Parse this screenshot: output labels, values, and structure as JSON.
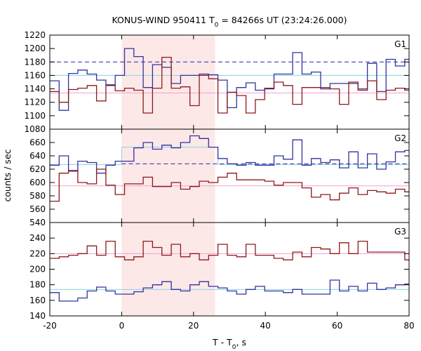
{
  "chart_data": {
    "type": "line",
    "title_main": "KONUS-WIND 950411 T",
    "title_sub": "0",
    "title_rest": " = 84266s UT (23:24:26.000)",
    "xlabel_main": "T - T",
    "xlabel_sub": "0",
    "xlabel_rest": ", s",
    "ylabel": "counts / sec",
    "xlim": [
      -20,
      80
    ],
    "x_ticks": [
      -20,
      0,
      20,
      40,
      60,
      80
    ],
    "x_tick_labels": [
      "-20",
      "0",
      "20",
      "40",
      "60",
      "80"
    ],
    "highlight_interval": [
      0,
      26
    ],
    "colors": {
      "highlight": "#fde8e8",
      "blue_series": "#3232a0",
      "red_series": "#8b1a1a",
      "blue_fit": "#87d3e6",
      "red_fit": "#f0a0d0",
      "blue_dashed": "#2828a0"
    },
    "panels": [
      {
        "label": "G1",
        "ylim": [
          1080,
          1220
        ],
        "y_ticks": [
          1080,
          1100,
          1120,
          1140,
          1160,
          1180,
          1200,
          1220
        ],
        "y_tick_labels": [
          "1080",
          "1100",
          "1120",
          "1140",
          "1160",
          "1180",
          "1200",
          "1220"
        ],
        "series": [
          {
            "color": "blue",
            "x": [
              -20,
              -17.4,
              -14.8,
              -12.2,
              -9.6,
              -7,
              -4.4,
              -1.8,
              0.8,
              3.4,
              6,
              8.6,
              11.2,
              13.8,
              16.4,
              19,
              21.6,
              24.2,
              26.8,
              29.4,
              32,
              34.6,
              37.2,
              39.8,
              42.4,
              45,
              47.6,
              50.2,
              52.8,
              55.4,
              58,
              60.6,
              63.2,
              65.8,
              68.4,
              71,
              73.6,
              76.2,
              78.8
            ],
            "values": [
              1152,
              1108,
              1163,
              1168,
              1162,
              1153,
              1146,
              1160,
              1200,
              1188,
              1142,
              1176,
              1172,
              1148,
              1160,
              1160,
              1162,
              1161,
              1153,
              1112,
              1142,
              1149,
              1138,
              1140,
              1162,
              1162,
              1194,
              1162,
              1165,
              1140,
              1148,
              1148,
              1148,
              1140,
              1178,
              1136,
              1184,
              1174,
              1184
            ]
          },
          {
            "color": "red",
            "x": [
              -20,
              -17.4,
              -14.8,
              -12.2,
              -9.6,
              -7,
              -4.4,
              -1.8,
              0.8,
              3.4,
              6,
              8.6,
              11.2,
              13.8,
              16.4,
              19,
              21.6,
              24.2,
              26.8,
              29.4,
              32,
              34.6,
              37.2,
              39.8,
              42.4,
              45,
              47.6,
              50.2,
              52.8,
              55.4,
              58,
              60.6,
              63.2,
              65.8,
              68.4,
              71,
              73.6,
              76.2,
              78.8
            ],
            "values": [
              1136,
              1120,
              1139,
              1141,
              1145,
              1122,
              1145,
              1137,
              1141,
              1138,
              1104,
              1141,
              1187,
              1141,
              1143,
              1115,
              1160,
              1155,
              1104,
              1135,
              1130,
              1104,
              1124,
              1141,
              1150,
              1145,
              1117,
              1142,
              1142,
              1142,
              1140,
              1117,
              1150,
              1138,
              1152,
              1124,
              1138,
              1141,
              1138
            ]
          }
        ],
        "fit_lines": [
          {
            "color": "blue_fit",
            "y": 1160,
            "x_range": [
              -20,
              80
            ]
          },
          {
            "color": "red_fit",
            "y": 1134,
            "x_range": [
              -20,
              80
            ]
          }
        ],
        "dashed_lines": [
          {
            "color": "blue_dashed",
            "y": 1180,
            "x_range": [
              -20,
              80
            ]
          }
        ]
      },
      {
        "label": "G2",
        "ylim": [
          540,
          680
        ],
        "y_ticks": [
          540,
          560,
          580,
          600,
          620,
          640,
          660
        ],
        "y_tick_labels": [
          "540",
          "560",
          "580",
          "600",
          "620",
          "640",
          "660"
        ],
        "series": [
          {
            "color": "blue",
            "x": [
              -20,
              -17.4,
              -14.8,
              -12.2,
              -9.6,
              -7,
              -4.4,
              -1.8,
              0.8,
              3.4,
              6,
              8.6,
              11.2,
              13.8,
              16.4,
              19,
              21.6,
              24.2,
              26.8,
              29.4,
              32,
              34.6,
              37.2,
              39.8,
              42.4,
              45,
              47.6,
              50.2,
              52.8,
              55.4,
              58,
              60.6,
              63.2,
              65.8,
              68.4,
              71,
              73.6,
              76.2,
              78.8
            ],
            "values": [
              626,
              640,
              617,
              632,
              630,
              614,
              626,
              632,
              632,
              652,
              660,
              650,
              656,
              652,
              660,
              670,
              666,
              653,
              636,
              628,
              626,
              630,
              626,
              626,
              640,
              635,
              664,
              626,
              636,
              630,
              634,
              622,
              646,
              622,
              643,
              620,
              631,
              646,
              648
            ]
          },
          {
            "color": "red",
            "x": [
              -20,
              -17.4,
              -14.8,
              -12.2,
              -9.6,
              -7,
              -4.4,
              -1.8,
              0.8,
              3.4,
              6,
              8.6,
              11.2,
              13.8,
              16.4,
              19,
              21.6,
              24.2,
              26.8,
              29.4,
              32,
              34.6,
              37.2,
              39.8,
              42.4,
              45,
              47.6,
              50.2,
              52.8,
              55.4,
              58,
              60.6,
              63.2,
              65.8,
              68.4,
              71,
              73.6,
              76.2,
              78.8
            ],
            "values": [
              572,
              614,
              618,
              600,
              598,
              620,
              596,
              582,
              598,
              598,
              608,
              594,
              594,
              600,
              590,
              594,
              602,
              600,
              608,
              614,
              604,
              604,
              604,
              602,
              596,
              600,
              600,
              592,
              578,
              582,
              574,
              584,
              592,
              582,
              588,
              586,
              584,
              590,
              586
            ]
          }
        ],
        "fit_lines": [
          {
            "color": "blue_fit",
            "y": 627,
            "x_range": [
              -20,
              0
            ]
          },
          {
            "color": "blue_fit",
            "y": 653,
            "x_range": [
              0,
              26.8
            ]
          },
          {
            "color": "blue_fit",
            "y": 627,
            "x_range": [
              26.8,
              80
            ]
          },
          {
            "color": "red_fit",
            "y": 595,
            "x_range": [
              -20,
              80
            ]
          }
        ],
        "dashed_lines": [
          {
            "color": "blue_dashed",
            "y": 628,
            "x_range": [
              0,
              80
            ]
          }
        ]
      },
      {
        "label": "G3",
        "ylim": [
          140,
          260
        ],
        "y_ticks": [
          140,
          160,
          180,
          200,
          220,
          240
        ],
        "y_tick_labels": [
          "140",
          "160",
          "180",
          "200",
          "220",
          "240"
        ],
        "series": [
          {
            "color": "blue",
            "x": [
              -20,
              -17.4,
              -14.8,
              -12.2,
              -9.6,
              -7,
              -4.4,
              -1.8,
              0.8,
              3.4,
              6,
              8.6,
              11.2,
              13.8,
              16.4,
              19,
              21.6,
              24.2,
              26.8,
              29.4,
              32,
              34.6,
              37.2,
              39.8,
              42.4,
              45,
              47.6,
              50.2,
              52.8,
              55.4,
              58,
              60.6,
              63.2,
              65.8,
              68.4,
              71,
              73.6,
              76.2,
              78.8
            ],
            "values": [
              170,
              159,
              159,
              163,
              172,
              177,
              172,
              168,
              168,
              171,
              176,
              180,
              184,
              174,
              172,
              180,
              184,
              178,
              176,
              172,
              168,
              174,
              178,
              172,
              172,
              170,
              174,
              168,
              168,
              168,
              186,
              172,
              178,
              172,
              182,
              174,
              176,
              180,
              181
            ]
          },
          {
            "color": "red",
            "x": [
              -20,
              -17.4,
              -14.8,
              -12.2,
              -9.6,
              -7,
              -4.4,
              -1.8,
              0.8,
              3.4,
              6,
              8.6,
              11.2,
              13.8,
              16.4,
              19,
              21.6,
              24.2,
              26.8,
              29.4,
              32,
              34.6,
              37.2,
              39.8,
              42.4,
              45,
              47.6,
              50.2,
              52.8,
              55.4,
              58,
              60.6,
              63.2,
              65.8,
              68.4,
              71,
              73.6,
              76.2,
              78.8
            ],
            "values": [
              214,
              216,
              218,
              220,
              230,
              218,
              236,
              216,
              212,
              216,
              236,
              228,
              218,
              232,
              216,
              220,
              212,
              218,
              232,
              218,
              216,
              232,
              218,
              218,
              214,
              212,
              222,
              216,
              228,
              226,
              220,
              234,
              220,
              236,
              222,
              222,
              222,
              222,
              212
            ]
          }
        ],
        "fit_lines": [
          {
            "color": "blue_fit",
            "y": 174,
            "x_range": [
              -20,
              80
            ]
          },
          {
            "color": "red_fit",
            "y": 220,
            "x_range": [
              -20,
              80
            ]
          }
        ],
        "dashed_lines": []
      }
    ]
  }
}
